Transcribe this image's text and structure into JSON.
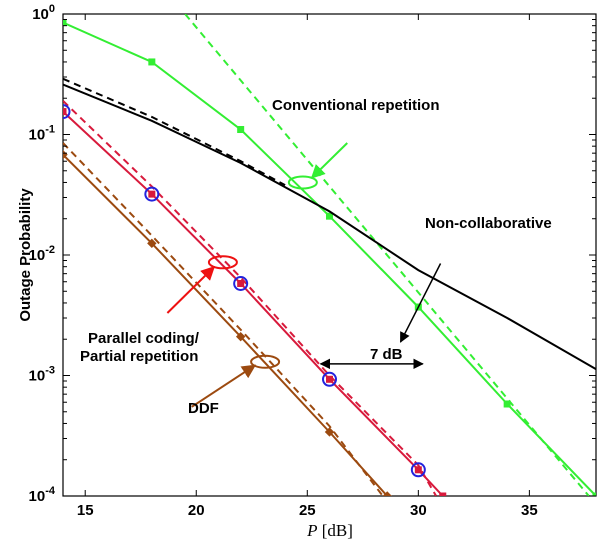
{
  "chart_data": {
    "type": "line",
    "xlabel_var": "P",
    "xlabel_unit": "[dB]",
    "ylabel": "Outage Probability",
    "xlim": [
      14,
      38
    ],
    "ylim": [
      0.0001,
      1
    ],
    "yscale": "log",
    "x_ticks": [
      15,
      20,
      25,
      30,
      35
    ],
    "y_ticks": [
      {
        "value": 1,
        "exp": "0"
      },
      {
        "value": 0.1,
        "exp": "-1"
      },
      {
        "value": 0.01,
        "exp": "-2"
      },
      {
        "value": 0.001,
        "exp": "-3"
      },
      {
        "value": 0.0001,
        "exp": "-4"
      }
    ],
    "grid": false,
    "series": [
      {
        "name": "Conventional repetition",
        "color": "#33ee33",
        "style": "solid",
        "marker": "square",
        "points": [
          [
            14,
            0.85
          ],
          [
            18,
            0.4
          ],
          [
            22,
            0.11
          ],
          [
            26,
            0.021
          ],
          [
            30,
            0.0037
          ],
          [
            34,
            0.00058
          ],
          [
            38,
            0.0001
          ]
        ]
      },
      {
        "name": "Conventional repetition",
        "color": "#33ee33",
        "style": "dashed",
        "marker": "none",
        "points": [
          [
            19.5,
            1.0
          ],
          [
            38,
            8.5e-05
          ]
        ]
      },
      {
        "name": "Non-collaborative",
        "color": "#000000",
        "style": "solid",
        "marker": "none",
        "points": [
          [
            14,
            0.26
          ],
          [
            18,
            0.13
          ],
          [
            22,
            0.058
          ],
          [
            26,
            0.023
          ],
          [
            30,
            0.0075
          ],
          [
            34,
            0.003
          ],
          [
            38,
            0.00113
          ]
        ]
      },
      {
        "name": "Non-collaborative",
        "color": "#000000",
        "style": "dashed",
        "marker": "none",
        "points": [
          [
            14,
            0.29
          ],
          [
            18,
            0.14
          ],
          [
            22,
            0.06
          ],
          [
            24,
            0.038
          ]
        ]
      },
      {
        "name": "Parallel coding/ Partial repetition",
        "color": "#d81a3c",
        "style": "solid",
        "marker": "square",
        "points": [
          [
            14,
            0.155
          ],
          [
            18,
            0.032
          ],
          [
            22,
            0.0058
          ],
          [
            26,
            0.00093
          ],
          [
            30,
            0.000165
          ],
          [
            31.1,
            0.0001
          ]
        ]
      },
      {
        "name": "Parallel coding/ Partial repetition",
        "color": "#d81a3c",
        "style": "dashed",
        "marker": "none",
        "points": [
          [
            14,
            0.19
          ],
          [
            18,
            0.037
          ],
          [
            22,
            0.0065
          ],
          [
            26,
            0.001
          ],
          [
            30,
            0.00018
          ],
          [
            30.8,
            0.0001
          ]
        ]
      },
      {
        "name": "Parallel coding/ Partial repetition",
        "color": "#2222dd",
        "style": "none",
        "marker": "circle",
        "points": [
          [
            14,
            0.155
          ],
          [
            18,
            0.032
          ],
          [
            22,
            0.0058
          ],
          [
            26,
            0.00093
          ],
          [
            30,
            0.000165
          ]
        ]
      },
      {
        "name": "DDF",
        "color": "#9c4a10",
        "style": "solid",
        "marker": "diamond",
        "points": [
          [
            14,
            0.068
          ],
          [
            18,
            0.0125
          ],
          [
            22,
            0.0021
          ],
          [
            26,
            0.00034
          ],
          [
            28.6,
            0.0001
          ]
        ]
      },
      {
        "name": "DDF",
        "color": "#9c4a10",
        "style": "dashed",
        "marker": "none",
        "points": [
          [
            14,
            0.085
          ],
          [
            18,
            0.0145
          ],
          [
            22,
            0.0024
          ],
          [
            26,
            0.00038
          ],
          [
            28.4,
            0.0001
          ]
        ]
      }
    ],
    "annotations": [
      {
        "text": "Conventional repetition",
        "color": "#33ee33",
        "ellipse": [
          24.8,
          0.04
        ],
        "arrow_from": [
          26.8,
          0.085
        ]
      },
      {
        "text": "Non-collaborative",
        "color": "#000000",
        "ellipse": null,
        "arrow_from": [
          31,
          0.0085
        ],
        "arrow_to": [
          29.2,
          0.0019
        ]
      },
      {
        "text": "Parallel coding/\nPartial repetition",
        "color": "#ee1111",
        "ellipse": [
          21.2,
          0.0087
        ],
        "arrow_from": [
          18.7,
          0.0033
        ]
      },
      {
        "text": "DDF",
        "color": "#9c4a10",
        "ellipse": [
          23.1,
          0.0013
        ],
        "arrow_from": [
          19.8,
          0.00055
        ]
      },
      {
        "text": "7 dB",
        "color": "#000000",
        "double_arrow": [
          [
            25.6,
            0.00125
          ],
          [
            30.2,
            0.00125
          ]
        ]
      }
    ]
  },
  "labels": {
    "legend_conventional": "Conventional repetition",
    "legend_noncollab": "Non-collaborative",
    "legend_parallel_1": "Parallel coding/",
    "legend_parallel_2": "Partial repetition",
    "legend_ddf": "DDF",
    "gap": "7 dB"
  }
}
